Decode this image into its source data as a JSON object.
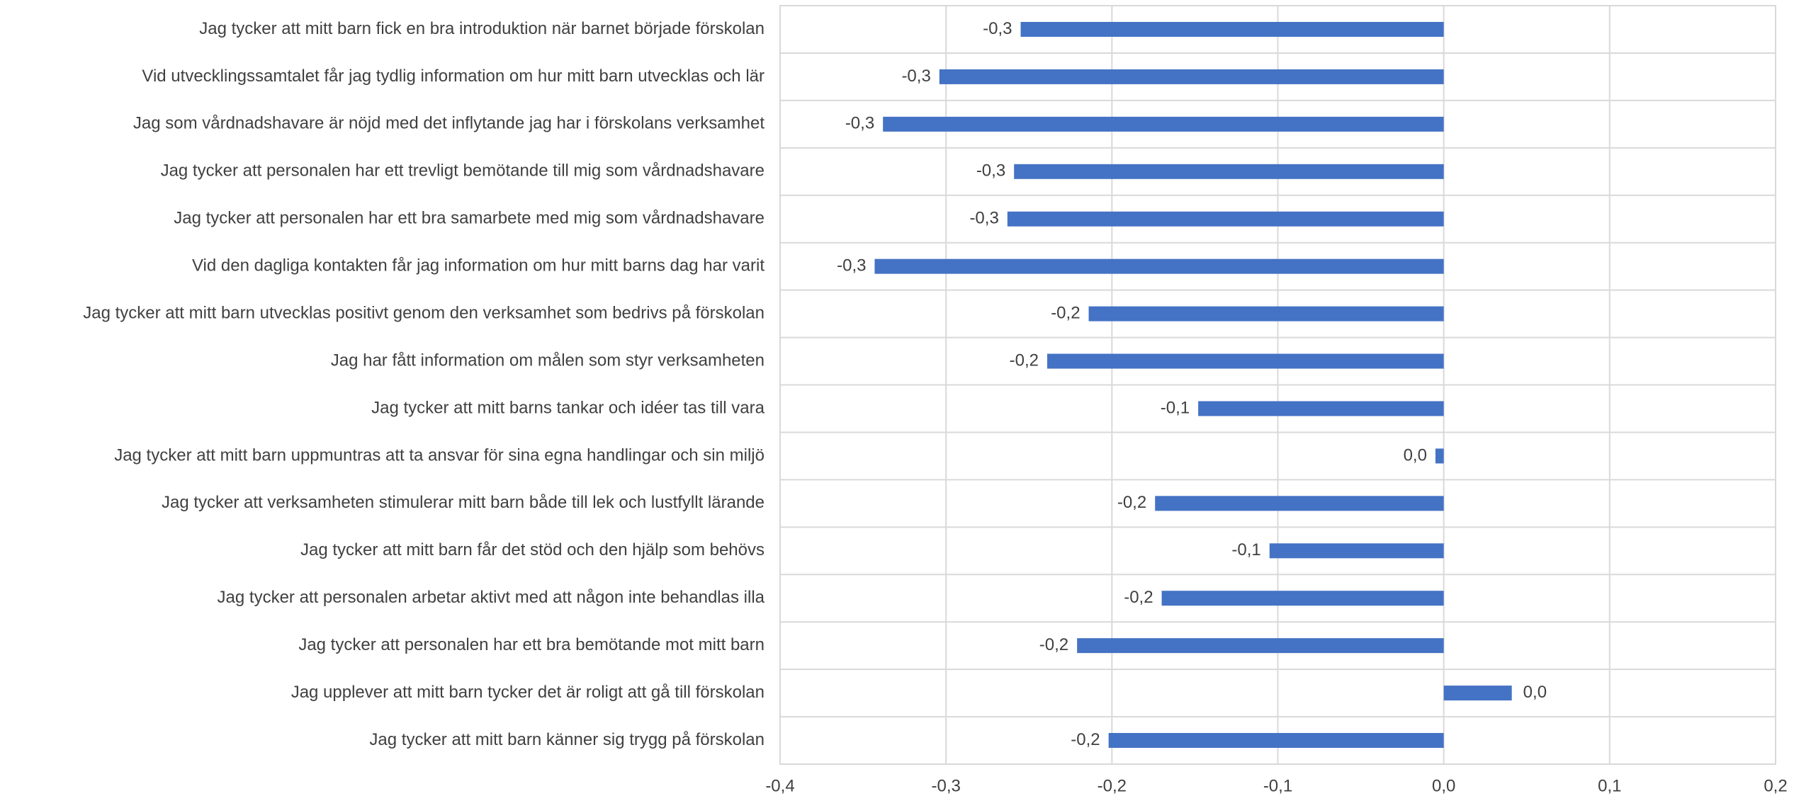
{
  "chart_data": {
    "type": "barh",
    "categories": [
      "Jag tycker att mitt barn fick en bra introduktion när barnet började förskolan",
      "Vid utvecklingssamtalet får jag tydlig information om hur mitt barn utvecklas och lär",
      "Jag som vårdnadshavare är nöjd med det inflytande jag har i förskolans verksamhet",
      "Jag tycker att personalen har ett trevligt bemötande till mig som vårdnadshavare",
      "Jag tycker att personalen har ett bra samarbete med mig som vårdnadshavare",
      "Vid den dagliga kontakten får jag information om hur mitt barns dag har varit",
      "Jag tycker att mitt barn utvecklas positivt genom den verksamhet som bedrivs på förskolan",
      "Jag har fått information om målen som styr verksamheten",
      "Jag tycker att mitt barns tankar och idéer tas till vara",
      "Jag tycker att mitt barn uppmuntras att ta ansvar för sina egna handlingar och sin miljö",
      "Jag tycker att verksamheten stimulerar mitt barn både till lek och lustfyllt lärande",
      "Jag tycker att mitt barn får det stöd och den hjälp som behövs",
      "Jag tycker att personalen arbetar aktivt med att någon inte behandlas illa",
      "Jag tycker att personalen har ett bra bemötande mot mitt barn",
      "Jag upplever att mitt barn tycker det är roligt att gå till förskolan",
      "Jag tycker att mitt barn känner sig trygg på förskolan"
    ],
    "values": [
      -0.255,
      -0.304,
      -0.338,
      -0.259,
      -0.263,
      -0.343,
      -0.214,
      -0.239,
      -0.148,
      -0.005,
      -0.174,
      -0.105,
      -0.17,
      -0.221,
      0.041,
      -0.202
    ],
    "value_labels": [
      "-0,3",
      "-0,3",
      "-0,3",
      "-0,3",
      "-0,3",
      "-0,3",
      "-0,2",
      "-0,2",
      "-0,1",
      "0,0",
      "-0,2",
      "-0,1",
      "-0,2",
      "-0,2",
      "0,0",
      "-0,2"
    ],
    "color": "#4472c4",
    "xlim": [
      -0.4,
      0.2
    ],
    "xticks": [
      {
        "value": -0.4,
        "label": "-0,4"
      },
      {
        "value": -0.3,
        "label": "-0,3"
      },
      {
        "value": -0.2,
        "label": "-0,2"
      },
      {
        "value": -0.1,
        "label": "-0,1"
      },
      {
        "value": 0,
        "label": "0,0"
      },
      {
        "value": 0.1,
        "label": "0,1"
      },
      {
        "value": 0.2,
        "label": "0,2"
      }
    ],
    "grid": true
  }
}
